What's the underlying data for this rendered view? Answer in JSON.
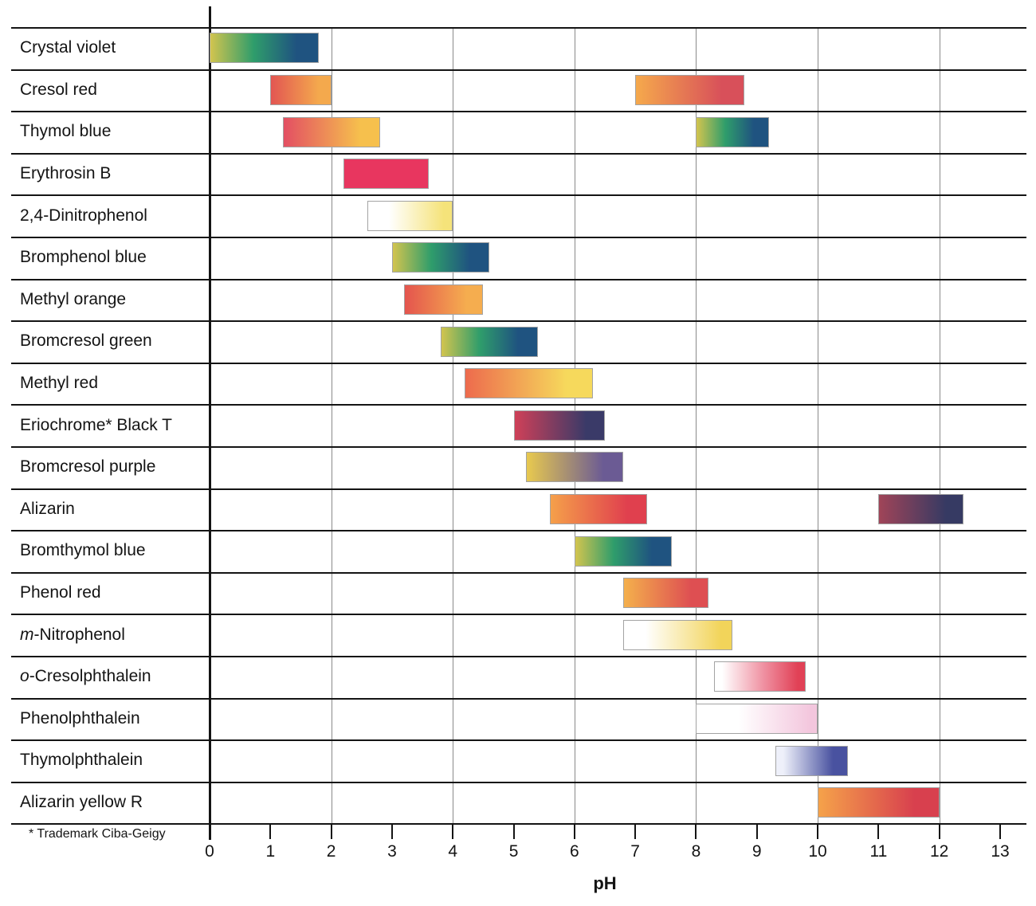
{
  "chart_data": {
    "type": "bar",
    "subtype": "horizontal-range-indicator-chart",
    "xlabel": "pH",
    "xlim": [
      0,
      13.5
    ],
    "x_ticks": [
      0,
      1,
      2,
      3,
      4,
      5,
      6,
      7,
      8,
      9,
      10,
      11,
      12,
      13
    ],
    "gridlines_at": [
      2,
      4,
      6,
      8,
      10,
      12
    ],
    "grid": "vertical-light-gray",
    "footnote": "* Trademark Ciba-Geigy",
    "indicators": [
      {
        "label": "Crystal violet",
        "ranges": [
          {
            "ph_start": 0.0,
            "ph_end": 1.8,
            "gradient": [
              "#d2c44f",
              "#2f9d6b",
              "#1f5380"
            ]
          }
        ]
      },
      {
        "label": "Cresol red",
        "ranges": [
          {
            "ph_start": 1.0,
            "ph_end": 2.0,
            "gradient": [
              "#e25652",
              "#f4a94d"
            ]
          },
          {
            "ph_start": 7.0,
            "ph_end": 8.8,
            "gradient": [
              "#f5a94c",
              "#d8505a"
            ]
          }
        ]
      },
      {
        "label": "Thymol blue",
        "ranges": [
          {
            "ph_start": 1.2,
            "ph_end": 2.8,
            "gradient": [
              "#e34f63",
              "#f6c04d"
            ]
          },
          {
            "ph_start": 8.0,
            "ph_end": 9.2,
            "gradient": [
              "#d2c44f",
              "#2f9d6b",
              "#1f5380"
            ]
          }
        ]
      },
      {
        "label": "Erythrosin B",
        "ranges": [
          {
            "ph_start": 2.2,
            "ph_end": 3.6,
            "gradient": [
              "#e8365f"
            ]
          }
        ]
      },
      {
        "label": "2,4-Dinitrophenol",
        "ranges": [
          {
            "ph_start": 2.6,
            "ph_end": 4.0,
            "gradient": [
              "#ffffff",
              "#f5e37a"
            ],
            "stops": [
              25,
              90
            ]
          }
        ]
      },
      {
        "label": "Bromphenol blue",
        "ranges": [
          {
            "ph_start": 3.0,
            "ph_end": 4.6,
            "gradient": [
              "#d2c44f",
              "#2f9d6b",
              "#1f5380"
            ]
          }
        ]
      },
      {
        "label": "Methyl orange",
        "ranges": [
          {
            "ph_start": 3.2,
            "ph_end": 4.5,
            "gradient": [
              "#e4544e",
              "#f5ad4f"
            ]
          }
        ]
      },
      {
        "label": "Bromcresol green",
        "ranges": [
          {
            "ph_start": 3.8,
            "ph_end": 5.4,
            "gradient": [
              "#d2c44f",
              "#2f9d6b",
              "#1f5380"
            ]
          }
        ]
      },
      {
        "label": "Methyl red",
        "ranges": [
          {
            "ph_start": 4.2,
            "ph_end": 6.3,
            "gradient": [
              "#ed6b4d",
              "#f6d95c"
            ]
          }
        ]
      },
      {
        "label": "Eriochrome* Black T",
        "ranges": [
          {
            "ph_start": 5.0,
            "ph_end": 6.5,
            "gradient": [
              "#cf4058",
              "#3a3a68"
            ]
          }
        ]
      },
      {
        "label": "Bromcresol purple",
        "ranges": [
          {
            "ph_start": 5.2,
            "ph_end": 6.8,
            "gradient": [
              "#e8c94f",
              "#6b5b94"
            ]
          }
        ]
      },
      {
        "label": "Alizarin",
        "ranges": [
          {
            "ph_start": 5.6,
            "ph_end": 7.2,
            "gradient": [
              "#f5a04a",
              "#e0404e"
            ]
          },
          {
            "ph_start": 11.0,
            "ph_end": 12.4,
            "gradient": [
              "#a04458",
              "#363a63"
            ]
          }
        ]
      },
      {
        "label": "Bromthymol blue",
        "ranges": [
          {
            "ph_start": 6.0,
            "ph_end": 7.6,
            "gradient": [
              "#d2c44f",
              "#2f9d6b",
              "#1f5380"
            ]
          }
        ]
      },
      {
        "label": "Phenol red",
        "ranges": [
          {
            "ph_start": 6.8,
            "ph_end": 8.2,
            "gradient": [
              "#f4b04c",
              "#de4f52"
            ]
          }
        ]
      },
      {
        "label": "m-Nitrophenol",
        "italic_prefix": "m",
        "label_rest": "-Nitrophenol",
        "ranges": [
          {
            "ph_start": 6.8,
            "ph_end": 8.6,
            "gradient": [
              "#ffffff",
              "#f2d45a"
            ],
            "stops": [
              20,
              90
            ]
          }
        ]
      },
      {
        "label": "o-Cresolphthalein",
        "italic_prefix": "o",
        "label_rest": "-Cresolphthalein",
        "ranges": [
          {
            "ph_start": 8.3,
            "ph_end": 9.8,
            "gradient": [
              "#ffffff",
              "#ef8fa0",
              "#e14156"
            ],
            "stops": [
              8,
              55,
              92
            ]
          }
        ]
      },
      {
        "label": "Phenolphthalein",
        "ranges": [
          {
            "ph_start": 8.0,
            "ph_end": 10.0,
            "gradient": [
              "#ffffff",
              "#f3c6dd"
            ],
            "stops": [
              35,
              95
            ]
          }
        ]
      },
      {
        "label": "Thymolphthalein",
        "ranges": [
          {
            "ph_start": 9.3,
            "ph_end": 10.5,
            "gradient": [
              "#eef0fa",
              "#4952a0"
            ],
            "stops": [
              10,
              80
            ]
          }
        ]
      },
      {
        "label": "Alizarin yellow R",
        "ranges": [
          {
            "ph_start": 10.0,
            "ph_end": 12.0,
            "gradient": [
              "#f5a24a",
              "#d8404e"
            ]
          }
        ]
      }
    ]
  }
}
